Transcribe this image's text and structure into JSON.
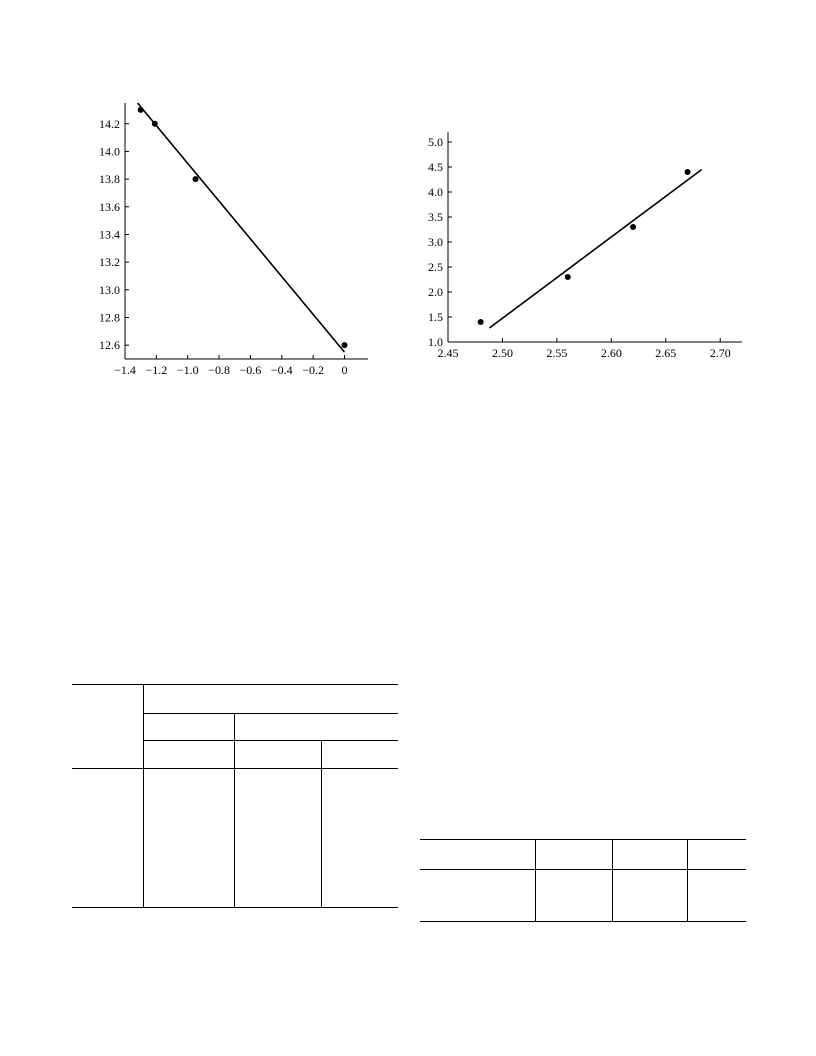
{
  "chart_data": [
    {
      "type": "scatter",
      "title": "",
      "xlabel": "",
      "ylabel": "",
      "xlim": [
        -1.4,
        0.15
      ],
      "ylim": [
        12.5,
        14.35
      ],
      "x_ticks": [
        -1.4,
        -1.2,
        -1.0,
        -0.8,
        -0.6,
        -0.4,
        -0.2,
        0
      ],
      "x_tick_labels": [
        "−1.4",
        "−1.2",
        "−1.0",
        "−0.8",
        "−0.6",
        "−0.4",
        "−0.2",
        "0"
      ],
      "y_ticks": [
        12.6,
        12.8,
        13.0,
        13.2,
        13.4,
        13.6,
        13.8,
        14.0,
        14.2
      ],
      "y_tick_labels": [
        "12.6",
        "12.8",
        "13.0",
        "13.2",
        "13.4",
        "13.6",
        "13.8",
        "14.0",
        "14.2"
      ],
      "series": [
        {
          "points": [
            [
              -1.3,
              14.3
            ],
            [
              -1.21,
              14.2
            ],
            [
              -0.95,
              13.8
            ],
            [
              0,
              12.6
            ]
          ]
        }
      ],
      "fit_line": [
        [
          -1.32,
          14.35
        ],
        [
          0,
          12.55
        ]
      ],
      "grid": false
    },
    {
      "type": "scatter",
      "title": "",
      "xlabel": "",
      "ylabel": "",
      "xlim": [
        2.45,
        2.72
      ],
      "ylim": [
        1.0,
        5.2
      ],
      "x_ticks": [
        2.45,
        2.5,
        2.55,
        2.6,
        2.65,
        2.7
      ],
      "x_tick_labels": [
        "2.45",
        "2.50",
        "2.55",
        "2.60",
        "2.65",
        "2.70"
      ],
      "y_ticks": [
        1.0,
        1.5,
        2.0,
        2.5,
        3.0,
        3.5,
        4.0,
        4.5,
        5.0
      ],
      "y_tick_labels": [
        "1.0",
        "1.5",
        "2.0",
        "2.5",
        "3.0",
        "3.5",
        "4.0",
        "4.5",
        "5.0"
      ],
      "series": [
        {
          "points": [
            [
              2.48,
              1.4
            ],
            [
              2.56,
              2.3
            ],
            [
              2.62,
              3.3
            ],
            [
              2.67,
              4.4
            ]
          ]
        }
      ],
      "fit_line": [
        [
          2.488,
          1.28
        ],
        [
          2.683,
          4.45
        ]
      ],
      "grid": false
    }
  ]
}
